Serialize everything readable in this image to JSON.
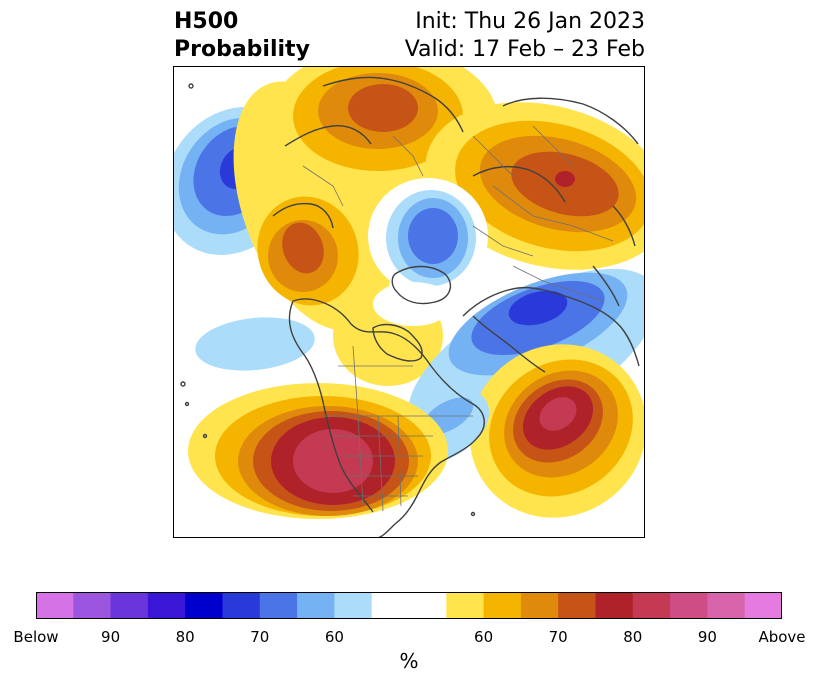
{
  "title": {
    "left_line1": "H500",
    "left_line2": "Probability",
    "right_line1": "Init: Thu 26 Jan 2023",
    "right_line2": "Valid: 17 Feb – 23 Feb"
  },
  "colorbar": {
    "colors": [
      "#d572e6",
      "#9b55de",
      "#6a36db",
      "#3a17d6",
      "#0000cc",
      "#2a3ad9",
      "#4b74e6",
      "#74b2f4",
      "#abdcf9",
      "#ffffff",
      "#ffffff",
      "#ffe44d",
      "#f4b400",
      "#e08a0c",
      "#c65417",
      "#b0222a",
      "#c43a52",
      "#cf4d85",
      "#d865ab",
      "#e57be0"
    ],
    "tick_labels": [
      "Below",
      "90",
      "80",
      "70",
      "60",
      "60",
      "70",
      "80",
      "90",
      "Above"
    ],
    "unit": "%"
  },
  "map_colors": {
    "coast": "#404040",
    "border": "#707070"
  }
}
